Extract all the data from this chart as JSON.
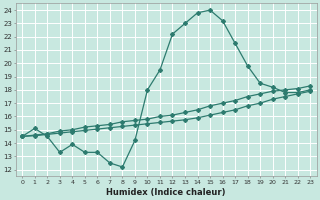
{
  "title": "",
  "xlabel": "Humidex (Indice chaleur)",
  "ylabel": "",
  "bg_color": "#c8e8e0",
  "grid_color": "#ffffff",
  "line_color": "#2d7b6f",
  "xlim": [
    -0.5,
    23.5
  ],
  "ylim": [
    11.5,
    24.5
  ],
  "xticks": [
    0,
    1,
    2,
    3,
    4,
    5,
    6,
    7,
    8,
    9,
    10,
    11,
    12,
    13,
    14,
    15,
    16,
    17,
    18,
    19,
    20,
    21,
    22,
    23
  ],
  "yticks": [
    12,
    13,
    14,
    15,
    16,
    17,
    18,
    19,
    20,
    21,
    22,
    23,
    24
  ],
  "curve1_x": [
    0,
    1,
    2,
    3,
    4,
    5,
    6,
    7,
    8,
    9,
    10,
    11,
    12,
    13,
    14,
    15,
    16,
    17,
    18,
    19,
    20,
    21,
    22,
    23
  ],
  "curve1_y": [
    14.5,
    15.1,
    14.5,
    13.3,
    13.9,
    13.3,
    13.3,
    12.5,
    12.2,
    14.2,
    18.0,
    19.5,
    22.2,
    23.0,
    23.8,
    24.0,
    23.2,
    21.5,
    19.8,
    18.5,
    18.2,
    17.8,
    17.8,
    18.0
  ],
  "curve2_x": [
    0,
    1,
    2,
    3,
    4,
    5,
    6,
    7,
    8,
    9,
    10,
    11,
    12,
    13,
    14,
    15,
    16,
    17,
    18,
    19,
    20,
    21,
    22,
    23
  ],
  "curve2_y": [
    14.5,
    14.6,
    14.7,
    14.9,
    15.0,
    15.2,
    15.3,
    15.4,
    15.6,
    15.7,
    15.8,
    16.0,
    16.1,
    16.3,
    16.5,
    16.8,
    17.0,
    17.2,
    17.5,
    17.7,
    17.9,
    18.0,
    18.1,
    18.3
  ],
  "curve3_x": [
    0,
    1,
    2,
    3,
    4,
    5,
    6,
    7,
    8,
    9,
    10,
    11,
    12,
    13,
    14,
    15,
    16,
    17,
    18,
    19,
    20,
    21,
    22,
    23
  ],
  "curve3_y": [
    14.5,
    14.55,
    14.65,
    14.75,
    14.85,
    14.95,
    15.05,
    15.15,
    15.25,
    15.35,
    15.45,
    15.55,
    15.65,
    15.75,
    15.9,
    16.1,
    16.3,
    16.5,
    16.8,
    17.0,
    17.3,
    17.5,
    17.7,
    17.9
  ],
  "marker": "D",
  "marker_size": 2.0,
  "line_width": 0.9
}
